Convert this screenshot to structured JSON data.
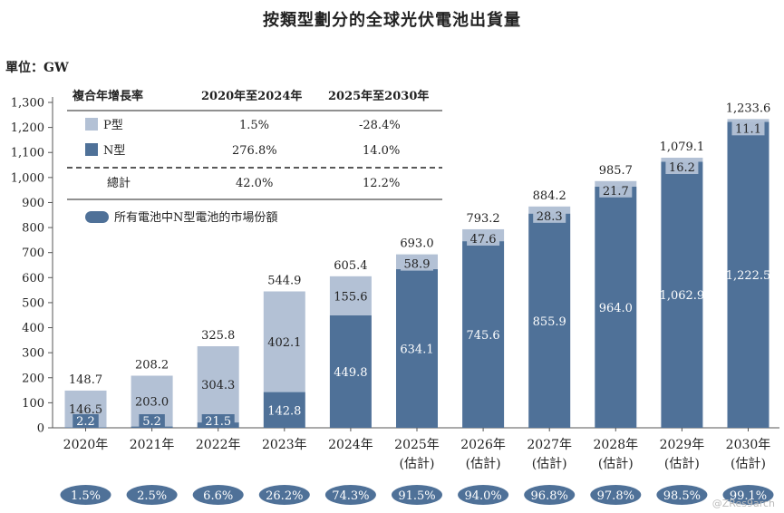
{
  "title": "按類型劃分的全球光伏電池出貨量",
  "unit_label": "單位：GW",
  "table": {
    "headers": [
      "複合年增長率",
      "2020年至2024年",
      "2025年至2030年"
    ],
    "rows": [
      {
        "label": "P型",
        "a": "1.5%",
        "b": "-28.4%"
      },
      {
        "label": "N型",
        "a": "276.8%",
        "b": "14.0%"
      },
      {
        "label": "總計",
        "a": "42.0%",
        "b": "12.2%"
      }
    ],
    "legend_share": "所有電池中N型電池的市場份額"
  },
  "colors": {
    "p": "#b3c1d5",
    "n": "#4f7198",
    "share": "#4f7198"
  },
  "watermark": "@ZRes9arch",
  "chart_data": {
    "type": "bar",
    "stacked": true,
    "categories": [
      "2020年",
      "2021年",
      "2022年",
      "2023年",
      "2024年",
      "2025年\n(估計)",
      "2026年\n(估計)",
      "2027年\n(估計)",
      "2028年\n(估計)",
      "2029年\n(估計)",
      "2030年\n(估計)"
    ],
    "series": [
      {
        "name": "N型",
        "values": [
          2.2,
          5.2,
          21.5,
          142.8,
          449.8,
          634.1,
          745.6,
          855.9,
          964.0,
          1062.9,
          1222.5
        ]
      },
      {
        "name": "P型",
        "values": [
          146.5,
          203.0,
          304.3,
          402.1,
          155.6,
          58.9,
          47.6,
          28.3,
          21.7,
          16.2,
          11.1
        ]
      }
    ],
    "totals": [
      "148.7",
      "208.2",
      "325.8",
      "544.9",
      "605.4",
      "693.0",
      "793.2",
      "884.2",
      "985.7",
      "1,079.1",
      "1,233.6"
    ],
    "n_labels": [
      "2.2",
      "5.2",
      "21.5",
      "142.8",
      "449.8",
      "634.1",
      "745.6",
      "855.9",
      "964.0",
      "1,062.9",
      "1,222.5"
    ],
    "p_labels": [
      "146.5",
      "203.0",
      "304.3",
      "402.1",
      "155.6",
      "58.9",
      "47.6",
      "28.3",
      "21.7",
      "16.2",
      "11.1"
    ],
    "n_share": [
      "1.5%",
      "2.5%",
      "6.6%",
      "26.2%",
      "74.3%",
      "91.5%",
      "94.0%",
      "96.8%",
      "97.8%",
      "98.5%",
      "99.1%"
    ],
    "ylim": [
      0,
      1300
    ],
    "yticks": [
      0,
      100,
      200,
      300,
      400,
      500,
      600,
      700,
      800,
      900,
      1000,
      1100,
      1200,
      1300
    ],
    "ytick_labels": [
      "0",
      "100",
      "200",
      "300",
      "400",
      "500",
      "600",
      "700",
      "800",
      "900",
      "1,000",
      "1,100",
      "1,200",
      "1,300"
    ],
    "grid": false
  }
}
